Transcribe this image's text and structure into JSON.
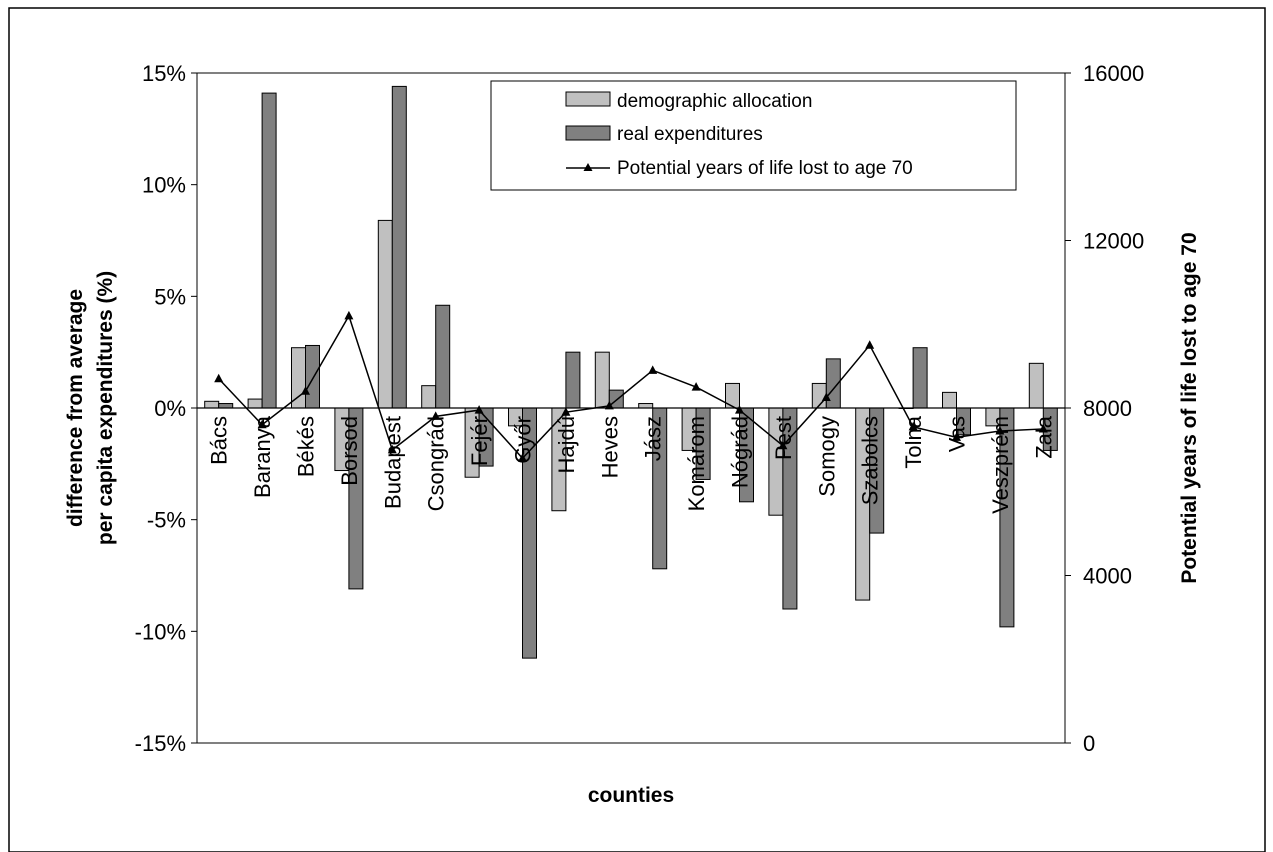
{
  "chart_data": {
    "type": "bar",
    "categories": [
      "Bács",
      "Baranya",
      "Békés",
      "Borsod",
      "Budapest",
      "Csongrád",
      "Fejér",
      "Győr",
      "Hajdú",
      "Heves",
      "Jász",
      "Komárom",
      "Nógrád",
      "Pest",
      "Somogy",
      "Szabolcs",
      "Tolna",
      "Vas",
      "Veszprém",
      "Zala"
    ],
    "series": [
      {
        "name": "demographic allocation",
        "kind": "bar",
        "axis": "left",
        "color": "#c0c0c0",
        "values": [
          0.3,
          0.4,
          2.7,
          -2.8,
          8.4,
          1.0,
          -3.1,
          -0.8,
          -4.6,
          2.5,
          0.2,
          -1.9,
          1.1,
          -4.8,
          1.1,
          -8.6,
          0.0,
          0.7,
          -0.8,
          2.0
        ]
      },
      {
        "name": "real expenditures",
        "kind": "bar",
        "axis": "left",
        "color": "#808080",
        "values": [
          0.2,
          14.1,
          2.8,
          -8.1,
          14.4,
          4.6,
          -2.6,
          -11.2,
          2.5,
          0.8,
          -7.2,
          -3.2,
          -4.2,
          -9.0,
          2.2,
          -5.6,
          2.7,
          -1.2,
          -9.8,
          -1.9
        ]
      },
      {
        "name": "Potential years of life lost to age 70",
        "kind": "line",
        "axis": "right",
        "color": "#000000",
        "values": [
          8700,
          7600,
          8400,
          10200,
          7000,
          7800,
          7950,
          6800,
          7900,
          8050,
          8900,
          8500,
          7950,
          7100,
          8250,
          9500,
          7550,
          7300,
          7450,
          7500
        ]
      }
    ],
    "ylim_left": [
      -15,
      15
    ],
    "yticks_left": [
      "15%",
      "10%",
      "5%",
      "0%",
      "-5%",
      "-10%",
      "-15%"
    ],
    "ylim_right": [
      0,
      16000
    ],
    "yticks_right": [
      "16000",
      "12000",
      "8000",
      "4000",
      "0"
    ],
    "xlabel": "counties",
    "ylabel_left": [
      "difference from average",
      "per capita expenditures (%)"
    ],
    "ylabel_right": "Potential years of life lost to age 70",
    "legend_position": "top-right",
    "grid": false
  }
}
